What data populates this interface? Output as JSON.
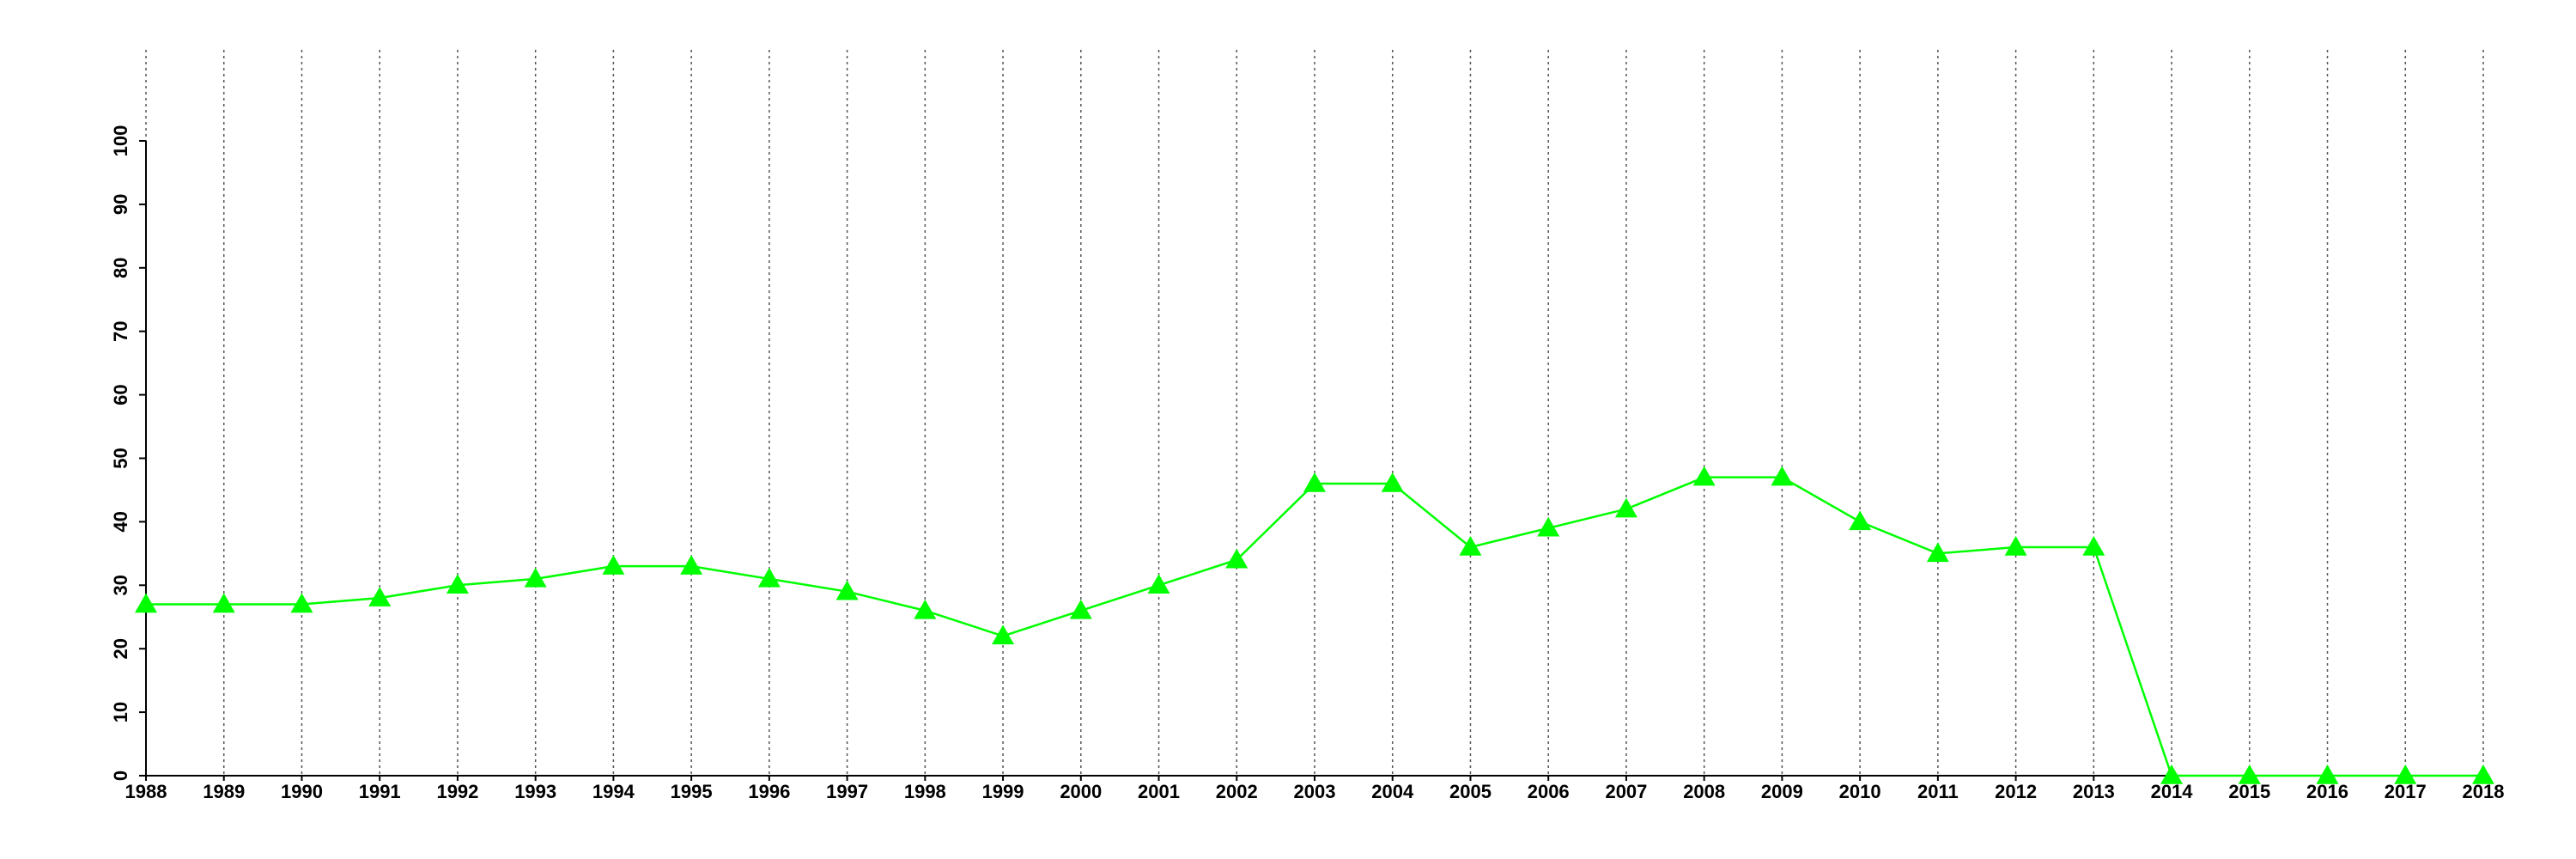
{
  "chart_data": {
    "type": "line",
    "x": [
      1988,
      1989,
      1990,
      1991,
      1992,
      1993,
      1994,
      1995,
      1996,
      1997,
      1998,
      1999,
      2000,
      2001,
      2002,
      2003,
      2004,
      2005,
      2006,
      2007,
      2008,
      2009,
      2010,
      2011,
      2012,
      2013,
      2014,
      2015,
      2016,
      2017,
      2018
    ],
    "series": [
      {
        "color": "#00ff00",
        "values": [
          27,
          27,
          27,
          28,
          30,
          31,
          33,
          33,
          31,
          29,
          26,
          22,
          26,
          30,
          34,
          46,
          46,
          36,
          39,
          42,
          47,
          47,
          40,
          35,
          36,
          36,
          0,
          0,
          0,
          0,
          0
        ]
      }
    ],
    "xlim": [
      1988,
      2018
    ],
    "xticks": [
      1988,
      1989,
      1990,
      1991,
      1992,
      1993,
      1994,
      1995,
      1996,
      1997,
      1998,
      1999,
      2000,
      2001,
      2002,
      2003,
      2004,
      2005,
      2006,
      2007,
      2008,
      2009,
      2010,
      2011,
      2012,
      2013,
      2014,
      2015,
      2016,
      2017,
      2018
    ],
    "ylim": [
      0,
      100
    ],
    "yticks": [
      0,
      10,
      20,
      30,
      40,
      50,
      60,
      70,
      80,
      90,
      100
    ],
    "grid": "x",
    "marker": "triangle"
  }
}
